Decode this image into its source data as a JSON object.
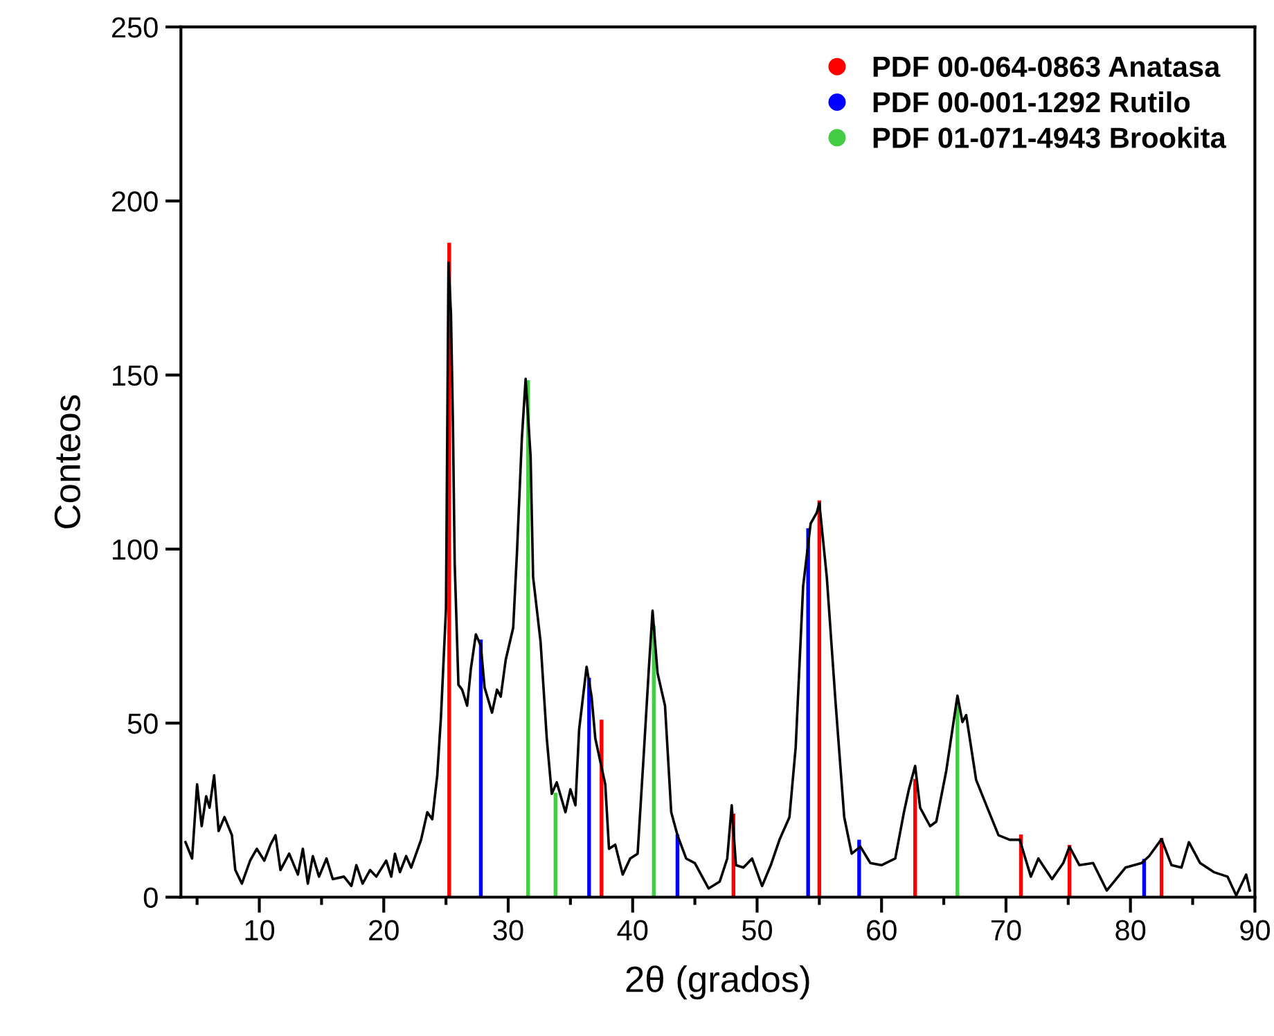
{
  "chart_data": {
    "type": "line",
    "xlabel": "2θ (grados)",
    "ylabel": "Conteos",
    "xlim": [
      3.7,
      90
    ],
    "ylim": [
      0,
      250
    ],
    "xticks": [
      {
        "value": 5,
        "label": null
      },
      10,
      {
        "value": 15,
        "label": null
      },
      20,
      {
        "value": 25,
        "label": null
      },
      30,
      {
        "value": 35,
        "label": null
      },
      40,
      {
        "value": 45,
        "label": null
      },
      50,
      {
        "value": 55,
        "label": null
      },
      60,
      {
        "value": 65,
        "label": null
      },
      70,
      {
        "value": 75,
        "label": null
      },
      80,
      {
        "value": 85,
        "label": null
      },
      90
    ],
    "yticks": [
      0,
      50,
      100,
      150,
      200,
      250
    ],
    "grid": false,
    "legend": "top right",
    "marker": "none",
    "line_style": "solid",
    "series": [
      {
        "color": "#000000",
        "x": [
          4.07,
          4.6,
          5.0,
          5.37,
          5.73,
          6.0,
          6.37,
          6.73,
          7.2,
          7.8,
          8.07,
          8.6,
          9.26,
          9.8,
          10.4,
          10.9,
          11.3,
          11.7,
          12.4,
          13.1,
          13.5,
          13.9,
          14.3,
          14.8,
          15.4,
          15.9,
          16.8,
          17.4,
          17.8,
          18.3,
          18.9,
          19.4,
          20.2,
          20.6,
          20.9,
          21.3,
          21.8,
          22.2,
          23.0,
          23.5,
          23.9,
          24.3,
          24.6,
          25.0,
          25.2,
          25.4,
          25.56,
          25.7,
          26.0,
          26.3,
          26.7,
          27.0,
          27.4,
          27.8,
          28.1,
          28.7,
          29.1,
          29.4,
          29.8,
          30.4,
          30.7,
          31.1,
          31.4,
          31.8,
          32.0,
          32.6,
          33.1,
          33.5,
          33.9,
          34.6,
          35.0,
          35.4,
          35.7,
          36.3,
          36.7,
          37.0,
          37.8,
          38.1,
          38.6,
          39.2,
          39.8,
          40.4,
          40.9,
          41.3,
          41.6,
          42.0,
          42.6,
          43.1,
          43.6,
          44.3,
          45.0,
          46.1,
          47.0,
          47.6,
          47.96,
          48.3,
          48.9,
          49.6,
          50.4,
          51.1,
          51.8,
          52.6,
          53.1,
          53.7,
          54.3,
          54.8,
          55.0,
          55.6,
          56.3,
          57.0,
          57.6,
          58.3,
          59.1,
          60.0,
          61.1,
          61.8,
          62.2,
          62.7,
          63.1,
          63.9,
          64.4,
          65.2,
          66.1,
          66.5,
          66.8,
          67.6,
          68.5,
          69.4,
          70.3,
          71.1,
          72.0,
          72.6,
          73.7,
          74.6,
          75.1,
          75.9,
          77.0,
          78.1,
          79.6,
          80.9,
          81.5,
          82.5,
          83.3,
          84.1,
          84.7,
          85.6,
          86.7,
          87.8,
          88.5,
          89.3,
          89.6
        ],
        "values": [
          15.8,
          11.1,
          32.4,
          20.4,
          29,
          25.7,
          35,
          19,
          23,
          17.8,
          7.8,
          3.9,
          10.5,
          13.9,
          10.5,
          15.1,
          17.8,
          7.8,
          12.5,
          6.5,
          13.9,
          3.9,
          11.8,
          5.9,
          11.1,
          5.2,
          5.9,
          3.2,
          9.2,
          3.9,
          7.8,
          5.9,
          10.5,
          5.9,
          12.5,
          7.2,
          11.8,
          8.5,
          16.5,
          24.4,
          22.4,
          35,
          52,
          82.8,
          182.3,
          167.7,
          135.9,
          96,
          61,
          59.6,
          55,
          65.6,
          75.5,
          72.2,
          60.3,
          53,
          59.6,
          57.6,
          68.2,
          77.4,
          98.7,
          131.9,
          148.9,
          126.6,
          92,
          73.4,
          45.6,
          29.7,
          33,
          24.4,
          31,
          26.4,
          48.2,
          66.2,
          57.6,
          45.6,
          32.4,
          13.9,
          15.1,
          6.5,
          11.1,
          12.5,
          41.5,
          65.6,
          82.3,
          64.4,
          55,
          24.4,
          17.8,
          11.1,
          9.8,
          2.5,
          4.5,
          11.1,
          26.4,
          9.2,
          8.5,
          11.1,
          3.2,
          9.2,
          16.5,
          23,
          43,
          89.4,
          107.3,
          110.5,
          113.2,
          92,
          56.2,
          23,
          12.5,
          14.5,
          9.8,
          9.2,
          11.1,
          24.4,
          31,
          37.7,
          25.7,
          20.4,
          21.7,
          36.3,
          57.9,
          50.3,
          52.3,
          33.7,
          25.7,
          17.8,
          16.5,
          16.5,
          5.9,
          11.1,
          5.2,
          9.8,
          14.5,
          9.2,
          9.8,
          1.9,
          8.5,
          9.8,
          11.8,
          16.7,
          9.2,
          8.5,
          15.8,
          9.8,
          7.2,
          5.9,
          0.5,
          6.5,
          1.9
        ]
      },
      {
        "type": "bar",
        "name": "PDF 00-064-0863 Anatasa",
        "color": "#ff0000",
        "x": [
          25.26,
          37.5,
          48.1,
          55.0,
          62.7,
          71.2,
          75.1,
          82.5
        ],
        "values": [
          188,
          51,
          24,
          114,
          34,
          18,
          15,
          17
        ]
      },
      {
        "type": "bar",
        "name": "PDF 00-001-1292 Rutilo",
        "color": "#0000ff",
        "x": [
          27.8,
          36.5,
          43.6,
          54.1,
          58.2,
          81.1
        ],
        "values": [
          74,
          63,
          18,
          106,
          16.5,
          11
        ]
      },
      {
        "type": "bar",
        "name": "PDF 01-071-4943 Brookita",
        "color": "#44cc44",
        "x": [
          31.6,
          33.8,
          41.7,
          66.1
        ],
        "values": [
          148.5,
          30,
          78,
          56
        ]
      }
    ]
  }
}
